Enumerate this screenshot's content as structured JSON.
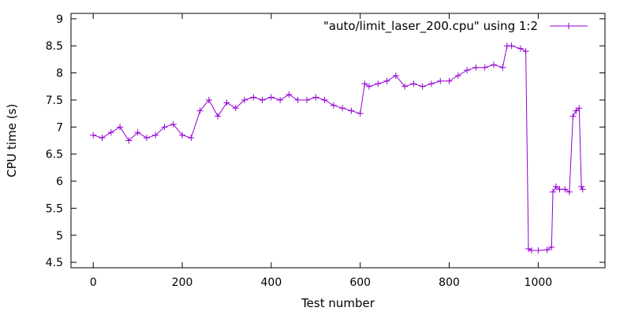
{
  "chart_data": {
    "type": "line",
    "title": "",
    "xlabel": "Test number",
    "ylabel": "CPU time (s)",
    "xlim": [
      -50,
      1150
    ],
    "ylim": [
      4.4,
      9.1
    ],
    "xticks": [
      0,
      200,
      400,
      600,
      800,
      1000
    ],
    "yticks": [
      4.5,
      5,
      5.5,
      6,
      6.5,
      7,
      7.5,
      8,
      8.5,
      9
    ],
    "ytick_labels": [
      "4.5",
      "5",
      "5.5",
      "6",
      "6.5",
      "7",
      "7.5",
      "8",
      "8.5",
      "9"
    ],
    "grid": false,
    "legend_position": "top-right",
    "series": [
      {
        "name": "\"auto/limit_laser_200.cpu\" using 1:2",
        "color": "#9400d3",
        "marker": "plus",
        "x": [
          0,
          20,
          40,
          60,
          80,
          100,
          120,
          140,
          160,
          180,
          200,
          220,
          240,
          260,
          280,
          300,
          320,
          340,
          360,
          380,
          400,
          420,
          440,
          460,
          480,
          500,
          520,
          540,
          560,
          580,
          600,
          610,
          620,
          640,
          660,
          680,
          700,
          720,
          740,
          760,
          780,
          800,
          820,
          840,
          860,
          880,
          900,
          920,
          930,
          940,
          960,
          972,
          978,
          985,
          1000,
          1020,
          1030,
          1033,
          1040,
          1048,
          1060,
          1070,
          1078,
          1085,
          1092,
          1097,
          1100
        ],
        "y": [
          6.85,
          6.8,
          6.9,
          7.0,
          6.75,
          6.9,
          6.8,
          6.85,
          7.0,
          7.05,
          6.85,
          6.8,
          7.3,
          7.5,
          7.2,
          7.45,
          7.35,
          7.5,
          7.55,
          7.5,
          7.55,
          7.5,
          7.6,
          7.5,
          7.5,
          7.55,
          7.5,
          7.4,
          7.35,
          7.3,
          7.25,
          7.8,
          7.75,
          7.8,
          7.85,
          7.95,
          7.75,
          7.8,
          7.75,
          7.8,
          7.85,
          7.85,
          7.95,
          8.05,
          8.1,
          8.1,
          8.15,
          8.1,
          8.5,
          8.5,
          8.45,
          8.4,
          4.75,
          4.72,
          4.72,
          4.73,
          4.78,
          5.8,
          5.9,
          5.85,
          5.85,
          5.8,
          7.2,
          7.3,
          7.35,
          5.9,
          5.85
        ]
      }
    ]
  }
}
